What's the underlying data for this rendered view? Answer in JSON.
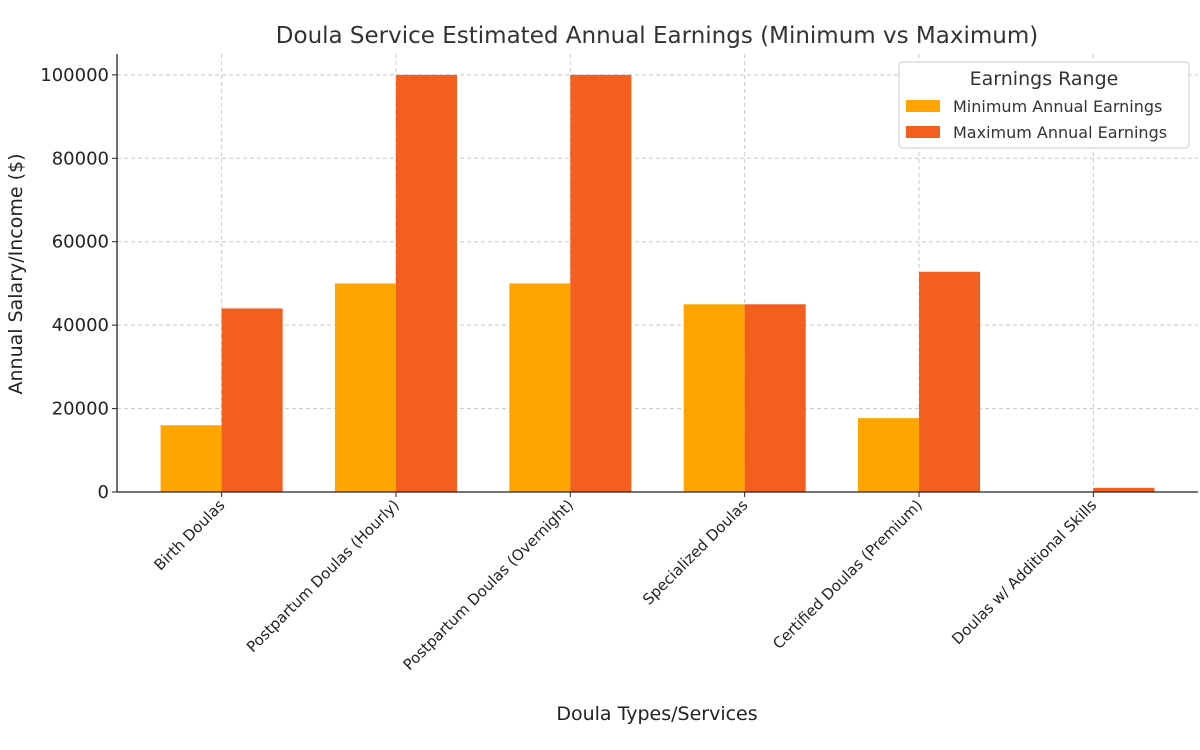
{
  "chart_data": {
    "type": "bar",
    "title": "Doula Service Estimated Annual Earnings (Minimum vs Maximum)",
    "xlabel": "Doula Types/Services",
    "ylabel": "Annual Salary/Income ($)",
    "categories": [
      "Birth Doulas",
      "Postpartum Doulas (Hourly)",
      "Postpartum Doulas (Overnight)",
      "Specialized Doulas",
      "Certified Doulas (Premium)",
      "Doulas w/ Additional Skills"
    ],
    "series": [
      {
        "name": "Minimum Annual Earnings",
        "color": "#FFA500",
        "values": [
          16000,
          50000,
          50000,
          45000,
          17700,
          0
        ]
      },
      {
        "name": "Maximum Annual Earnings",
        "color": "#F25F1F",
        "values": [
          44000,
          100000,
          100000,
          45000,
          52800,
          1000
        ]
      }
    ],
    "ylim": [
      0,
      105000
    ],
    "yticks": [
      "0",
      "20000",
      "40000",
      "60000",
      "80000",
      "100000"
    ],
    "grid": true,
    "legend": {
      "title": "Earnings Range",
      "position": "top-right"
    }
  }
}
